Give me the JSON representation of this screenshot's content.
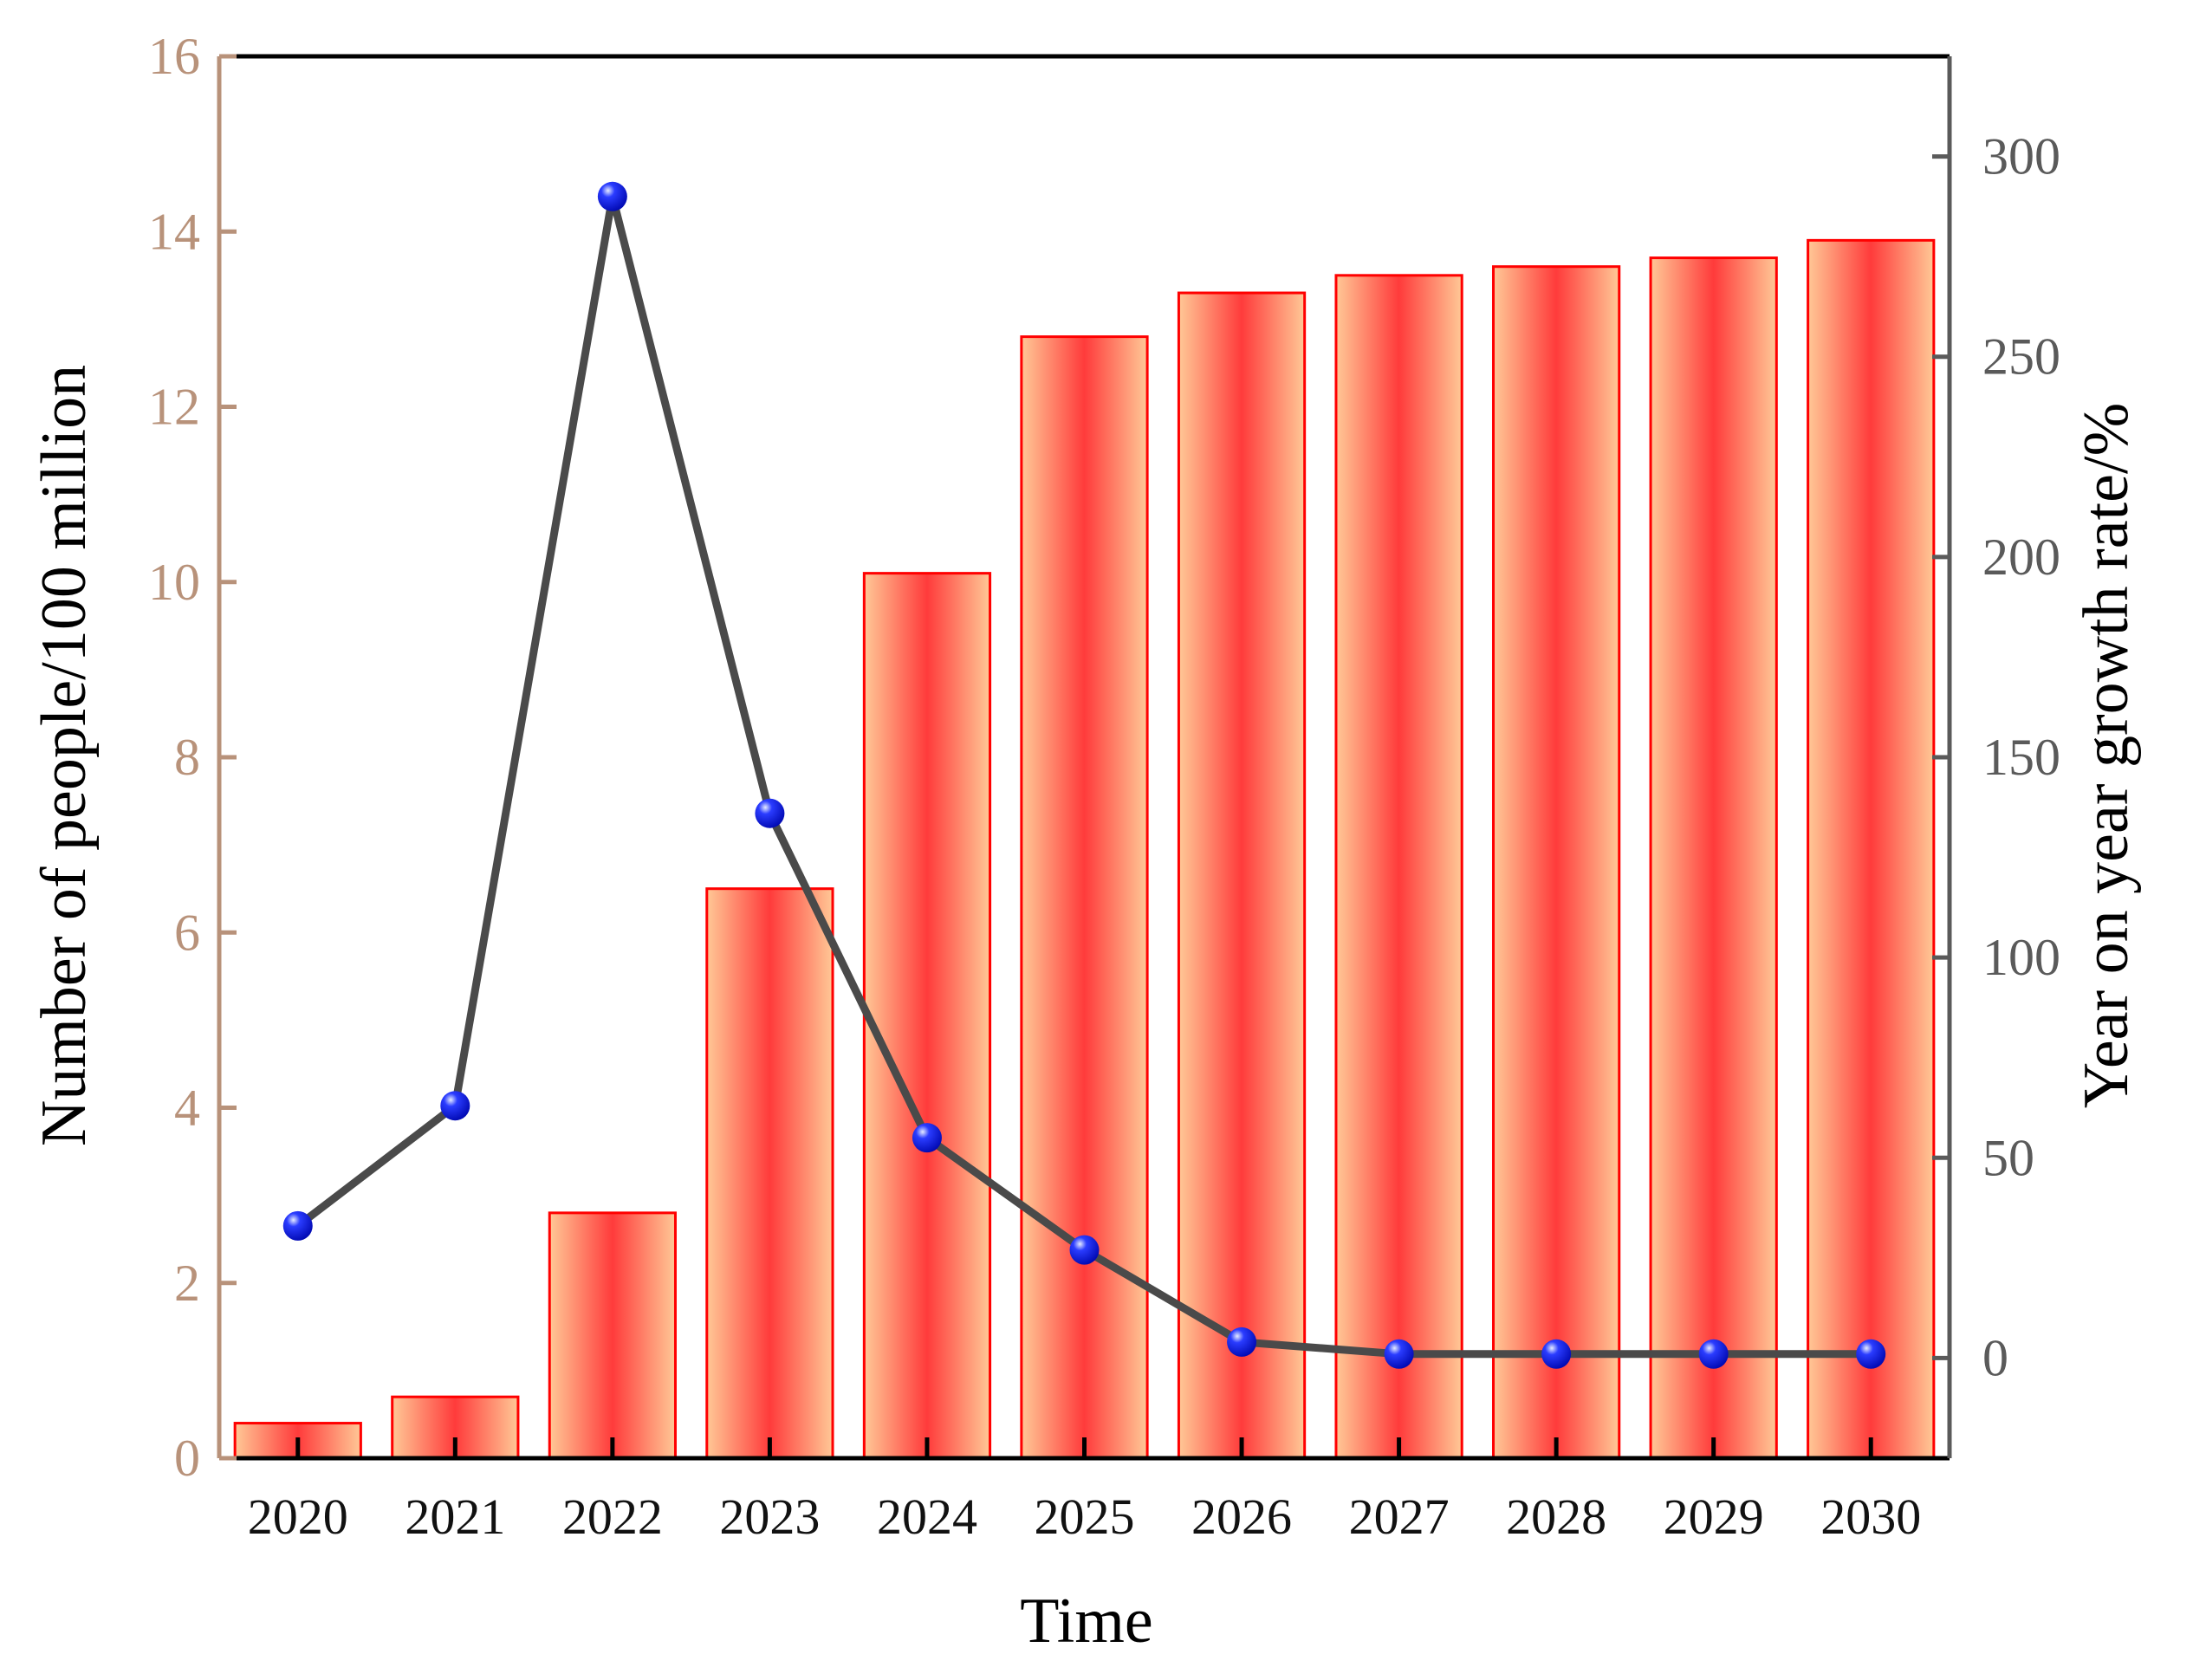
{
  "chart_data": {
    "type": "bar",
    "title": "",
    "xlabel": "Time",
    "ylabel": "Number of people/100 million",
    "y2label": "Year on year growth rate/%",
    "categories": [
      "2020",
      "2021",
      "2022",
      "2023",
      "2024",
      "2025",
      "2026",
      "2027",
      "2028",
      "2029",
      "2030"
    ],
    "series": [
      {
        "type": "bar",
        "axis": "left",
        "values": [
          0.4,
          0.7,
          2.8,
          6.5,
          10.1,
          12.8,
          13.3,
          13.5,
          13.6,
          13.7,
          13.9
        ]
      },
      {
        "type": "line",
        "axis": "right",
        "values": [
          33,
          63,
          290,
          136,
          55,
          27,
          4,
          1,
          1,
          1,
          1
        ]
      }
    ],
    "ylim": [
      0,
      16
    ],
    "yticks": [
      "0",
      "2",
      "4",
      "6",
      "8",
      "10",
      "12",
      "14",
      "16"
    ],
    "y2lim": [
      -25,
      325
    ],
    "y2ticks": [
      "0",
      "50",
      "100",
      "150",
      "200",
      "250",
      "300"
    ],
    "grid": false,
    "legend": "none",
    "colors": {
      "bar_fill_center": "#ff3b3b",
      "bar_fill_edge": "#ffc896",
      "bar_border": "#ff0000",
      "line": "#4a4a4a",
      "marker": "#0a14e6",
      "left_axis": "#b8927a",
      "right_axis": "#5a5a5a",
      "bottom_axis": "#000000"
    }
  }
}
